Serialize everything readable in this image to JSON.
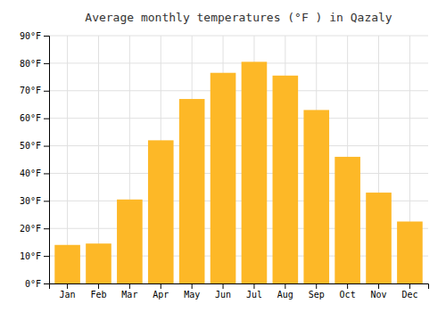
{
  "chart_data": {
    "type": "bar",
    "title": "Average monthly temperatures (°F ) in Qazaly",
    "categories": [
      "Jan",
      "Feb",
      "Mar",
      "Apr",
      "May",
      "Jun",
      "Jul",
      "Aug",
      "Sep",
      "Oct",
      "Nov",
      "Dec"
    ],
    "values": [
      14,
      14.5,
      30.5,
      52,
      67,
      76.5,
      80.5,
      75.5,
      63,
      46,
      33,
      22.5
    ],
    "color": "#FDB827",
    "ylim": [
      0,
      90
    ],
    "yticks": [
      {
        "value": 0,
        "label": "0°F"
      },
      {
        "value": 10,
        "label": "10°F"
      },
      {
        "value": 20,
        "label": "20°F"
      },
      {
        "value": 30,
        "label": "30°F"
      },
      {
        "value": 40,
        "label": "40°F"
      },
      {
        "value": 50,
        "label": "50°F"
      },
      {
        "value": 60,
        "label": "60°F"
      },
      {
        "value": 70,
        "label": "70°F"
      },
      {
        "value": 80,
        "label": "80°F"
      },
      {
        "value": 90,
        "label": "90°F"
      }
    ],
    "grid": true
  }
}
